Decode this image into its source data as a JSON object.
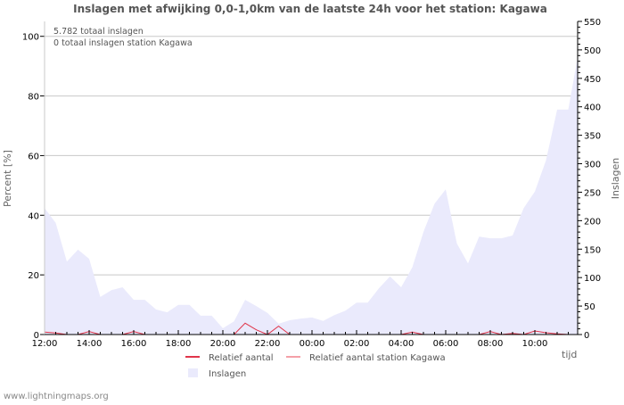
{
  "chart_data": {
    "type": "area",
    "title": "Inslagen met afwijking 0,0-1,0km van de laatste 24h voor het station: Kagawa",
    "annotations": [
      "5.782 totaal inslagen",
      "0 totaal inslagen station Kagawa"
    ],
    "xlabel": "tijd",
    "ylabel_left": "Percent   [%]",
    "ylabel_right": "Inslagen",
    "x_tick_labels": [
      "12:00",
      "14:00",
      "16:00",
      "18:00",
      "20:00",
      "22:00",
      "00:00",
      "02:00",
      "04:00",
      "06:00",
      "08:00",
      "10:00"
    ],
    "x_range_hours": [
      0,
      23.9
    ],
    "ylim_left": [
      0,
      105
    ],
    "yticks_left": [
      "0",
      "20",
      "40",
      "60",
      "80",
      "100"
    ],
    "ylim_right": [
      0,
      550
    ],
    "yticks_right": [
      "0",
      "50",
      "100",
      "150",
      "200",
      "250",
      "300",
      "350",
      "400",
      "450",
      "500",
      "550"
    ],
    "grid": true,
    "legend_position": "bottom",
    "legend": [
      "Relatief aantal",
      "Relatief aantal station Kagawa",
      "Inslagen"
    ],
    "series": [
      {
        "name": "Inslagen",
        "axis": "right",
        "color": "#eaeafc",
        "x": [
          0,
          0.5,
          1,
          1.5,
          2,
          2.5,
          3,
          3.5,
          4,
          4.5,
          5,
          5.5,
          6,
          6.5,
          7,
          7.5,
          8,
          8.5,
          9,
          9.5,
          10,
          10.5,
          11,
          11.5,
          12,
          12.5,
          13,
          13.5,
          14,
          14.5,
          15,
          15.5,
          16,
          16.5,
          17,
          17.5,
          18,
          18.5,
          19,
          19.5,
          20,
          20.5,
          21,
          21.5,
          22,
          22.5,
          23,
          23.5,
          23.9
        ],
        "values": [
          222,
          196,
          128,
          149,
          133,
          66,
          78,
          83,
          61,
          61,
          44,
          39,
          52,
          52,
          33,
          33,
          11,
          23,
          61,
          50,
          38,
          19,
          25,
          28,
          30,
          24,
          34,
          42,
          56,
          56,
          81,
          102,
          83,
          118,
          180,
          230,
          255,
          160,
          125,
          172,
          169,
          169,
          174,
          222,
          251,
          306,
          395,
          395,
          483
        ]
      },
      {
        "name": "Relatief aantal",
        "axis": "left",
        "color": "#e0354a",
        "x": [
          0,
          0.5,
          1,
          1.5,
          2,
          2.5,
          3,
          3.5,
          4,
          4.5,
          5,
          5.5,
          6,
          6.5,
          7,
          7.5,
          8,
          8.5,
          9,
          9.5,
          10,
          10.5,
          11,
          11.5,
          12,
          12.5,
          13,
          13.5,
          14,
          14.5,
          15,
          15.5,
          16,
          16.5,
          17,
          17.5,
          18,
          18.5,
          19,
          19.5,
          20,
          20.5,
          21,
          21.5,
          22,
          22.5,
          23,
          23.5
        ],
        "values": [
          0.8,
          0.5,
          0,
          0,
          1,
          0,
          0,
          0,
          1,
          0,
          0,
          0,
          0,
          0,
          0,
          0,
          0,
          0,
          3.8,
          1.6,
          0,
          2.8,
          0,
          0,
          0,
          0,
          0,
          0,
          0,
          0,
          0,
          0,
          0,
          0.8,
          0,
          0,
          0,
          0,
          0,
          0,
          1,
          0,
          0.4,
          0,
          1.2,
          0.6,
          0.2,
          0
        ]
      },
      {
        "name": "Relatief aantal station Kagawa",
        "axis": "left",
        "color": "#f4a0a8",
        "x": [],
        "values": []
      }
    ]
  },
  "footer": "www.lightningmaps.org"
}
